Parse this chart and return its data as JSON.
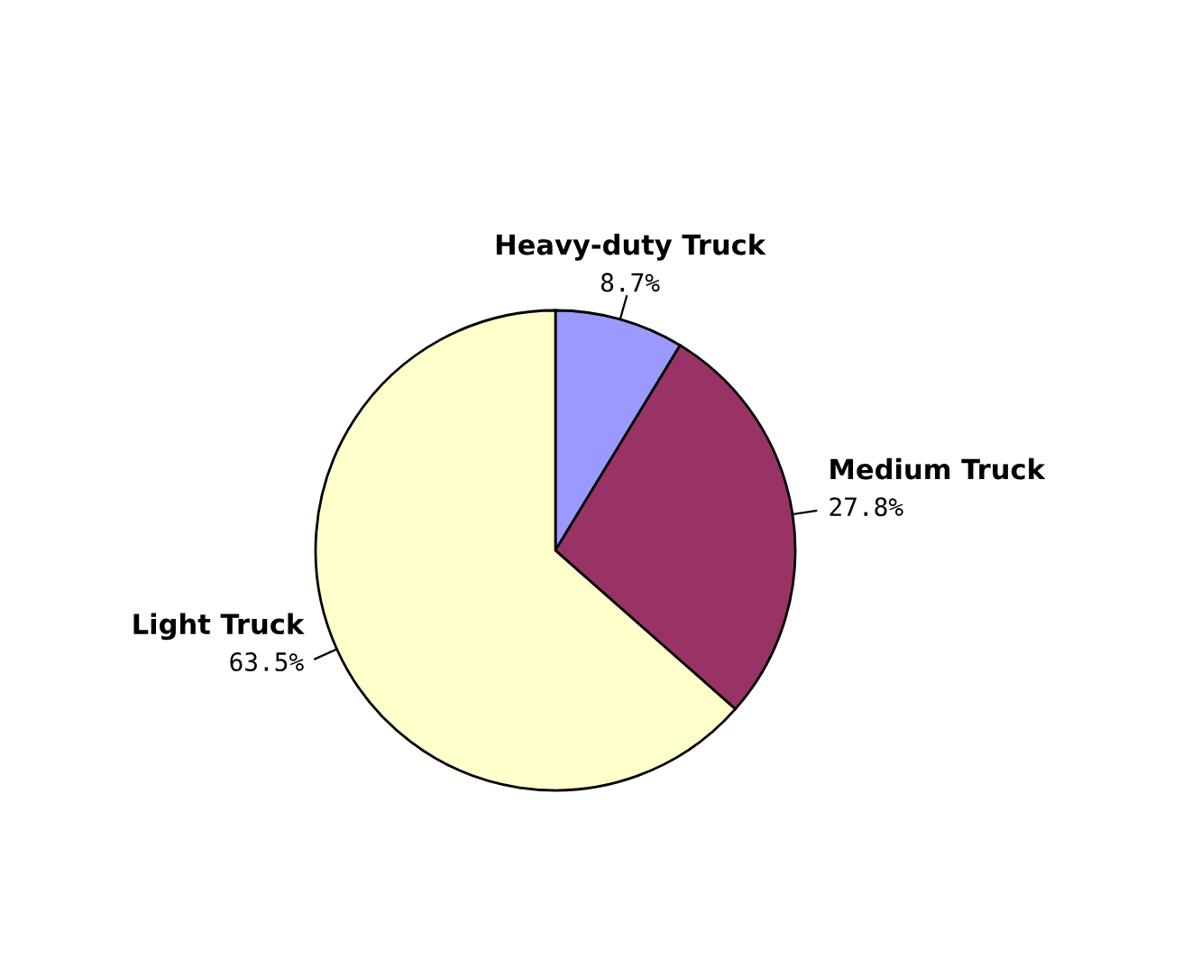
{
  "chart_data": {
    "type": "pie",
    "categories": [
      "Heavy-duty Truck",
      "Medium Truck",
      "Light Truck"
    ],
    "values": [
      8.7,
      27.8,
      63.5
    ],
    "colors": [
      "#9999ff",
      "#993366",
      "#ffffcc"
    ],
    "value_labels": [
      "8.7%",
      "27.8%",
      "63.5%"
    ]
  }
}
